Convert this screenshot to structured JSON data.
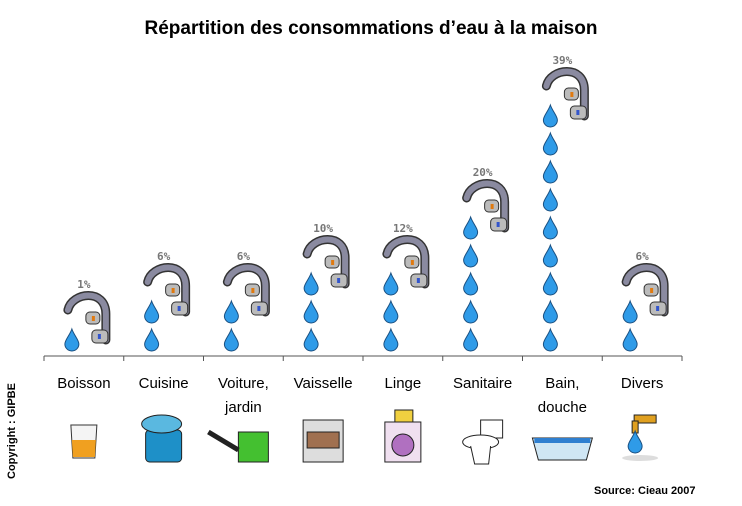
{
  "chart_data": {
    "type": "bar",
    "title": "Répartition des consommations d’eau à la maison",
    "categories": [
      "Boisson",
      "Cuisine",
      "Voiture, jardin",
      "Vaisselle",
      "Linge",
      "Sanitaire",
      "Bain, douche",
      "Divers"
    ],
    "category_lines": [
      [
        "Boisson"
      ],
      [
        "Cuisine"
      ],
      [
        "Voiture,",
        "jardin"
      ],
      [
        "Vaisselle"
      ],
      [
        "Linge"
      ],
      [
        "Sanitaire"
      ],
      [
        "Bain,",
        "douche"
      ],
      [
        "Divers"
      ]
    ],
    "values": [
      1,
      6,
      6,
      10,
      12,
      20,
      39,
      6
    ],
    "value_labels": [
      "1%",
      "6%",
      "6%",
      "10%",
      "12%",
      "20%",
      "39%",
      "6%"
    ],
    "unit": "%",
    "marks": "faucet-with-water-drops",
    "icons": [
      "glass-icon",
      "pot-icon",
      "watering-can-icon",
      "dishwasher-icon",
      "washing-machine-icon",
      "toilet-icon",
      "bathtub-icon",
      "tap-icon"
    ],
    "colors": {
      "drop": "#2f9be8",
      "faucet": "#8a8aa0",
      "label": "#777777"
    }
  },
  "copyright": "Copyright : GIPBE",
  "source": "Source: Cieau 2007"
}
